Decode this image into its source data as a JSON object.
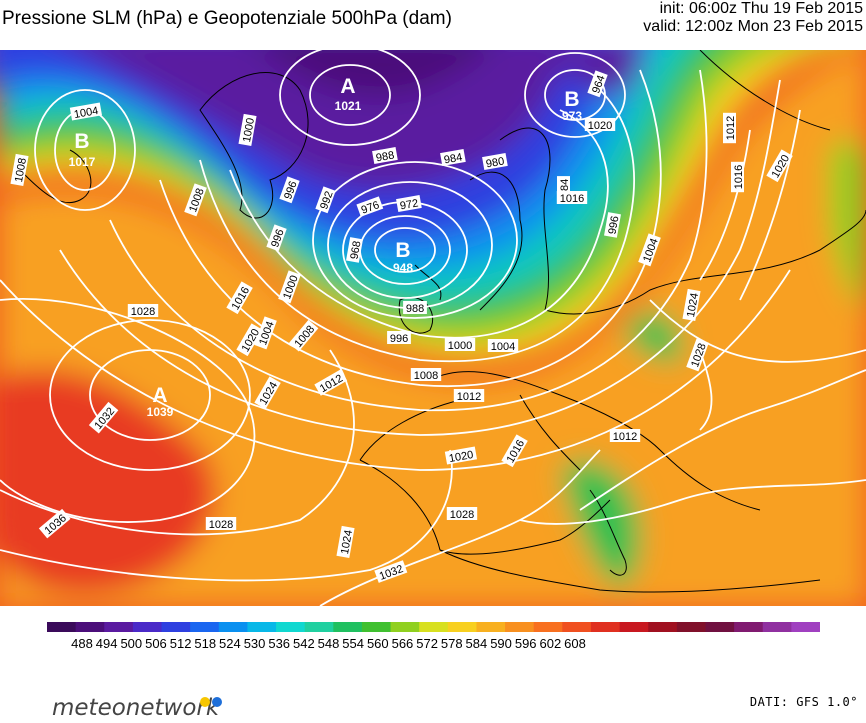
{
  "header": {
    "title": "Pressione SLM (hPa) e Geopotenziale 500hPa (dam)",
    "init": "init: 06:00z Thu 19 Feb 2015",
    "valid": "valid: 12:00z Mon 23 Feb 2015"
  },
  "pressure_centres": [
    {
      "type": "low",
      "letter": "B",
      "value": "1017"
    },
    {
      "type": "high",
      "letter": "A",
      "value": "1021"
    },
    {
      "type": "low",
      "letter": "B",
      "value": "973"
    },
    {
      "type": "low",
      "letter": "B",
      "value": "948"
    },
    {
      "type": "high",
      "letter": "A",
      "value": "1039"
    }
  ],
  "isobar_labels": [
    "1004",
    "1008",
    "1008",
    "1000",
    "996",
    "992",
    "988",
    "984",
    "980",
    "976",
    "972",
    "968",
    "964",
    "996",
    "1000",
    "1004",
    "1008",
    "1012",
    "1016",
    "1020",
    "1024",
    "1028",
    "1032",
    "1036",
    "1028",
    "1032",
    "1024",
    "1028",
    "1020",
    "1016",
    "1012",
    "1012",
    "1008",
    "1004",
    "1000",
    "996",
    "988",
    "984",
    "996",
    "1004",
    "1012",
    "1016",
    "1020",
    "1024",
    "1028",
    "1016",
    "1020"
  ],
  "colorbar": {
    "unit": "dam",
    "ticks": [
      "488",
      "494",
      "500",
      "506",
      "512",
      "518",
      "524",
      "530",
      "536",
      "542",
      "548",
      "554",
      "560",
      "566",
      "572",
      "578",
      "584",
      "590",
      "596",
      "602",
      "608"
    ],
    "colors": [
      "#3a0a5a",
      "#4b0e7a",
      "#5a1aa0",
      "#4a2ac8",
      "#2e40e0",
      "#1a66f0",
      "#0a90f0",
      "#08b8e8",
      "#10d8d0",
      "#20d0a0",
      "#20c060",
      "#40c030",
      "#90d020",
      "#d8e020",
      "#f8d020",
      "#f8b020",
      "#f89020",
      "#f87020",
      "#f05020",
      "#e03020",
      "#c81820",
      "#a01020",
      "#80102a",
      "#701040",
      "#801a70",
      "#9030a0",
      "#a040c0"
    ]
  },
  "branding": {
    "logo_text": "meteonetwork",
    "dot_colors": [
      "#f7c600",
      "#1e6fd9"
    ],
    "source": "DATI: GFS 1.0°"
  }
}
